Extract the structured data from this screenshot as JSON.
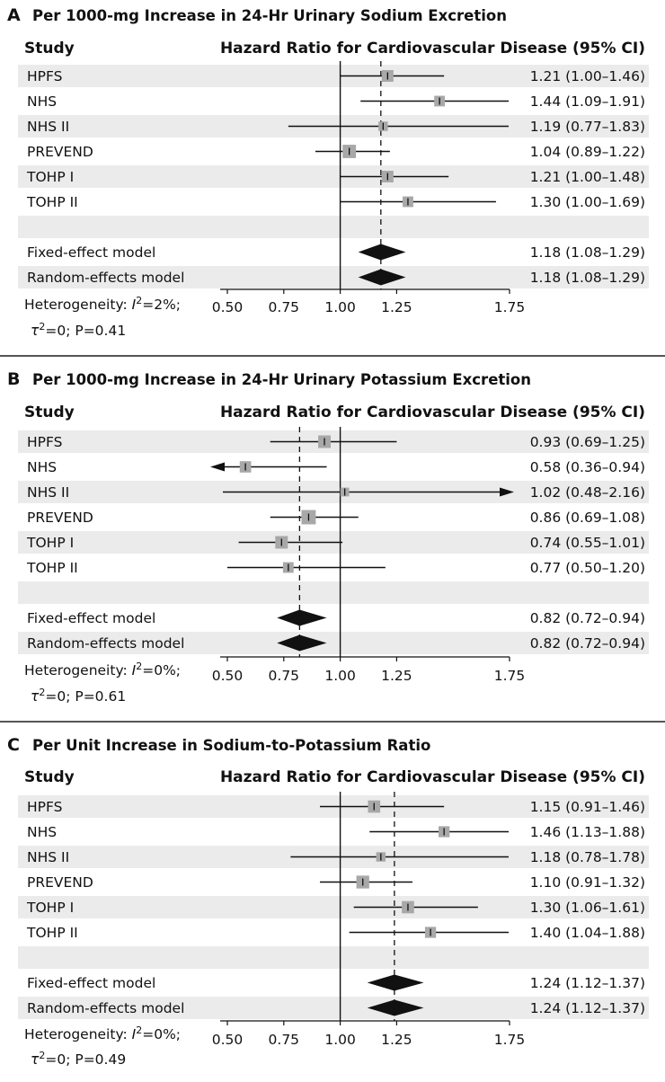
{
  "panels": [
    {
      "letter": "A",
      "title": "Per 1000-mg Increase in 24-Hr Urinary Sodium Excretion",
      "study_header": "Study",
      "hr_header": "Hazard Ratio for Cardiovascular Disease (95% CI)",
      "heterogeneity": {
        "prefix": "Heterogeneity: ",
        "i2": "I",
        "i2_val": "=2%;",
        "tau": "τ",
        "tau_val": "=0; P=0.41"
      }
    },
    {
      "letter": "B",
      "title": "Per 1000-mg Increase in 24-Hr Urinary Potassium Excretion",
      "study_header": "Study",
      "hr_header": "Hazard Ratio for Cardiovascular Disease (95% CI)",
      "heterogeneity": {
        "prefix": "Heterogeneity: ",
        "i2": "I",
        "i2_val": "=0%;",
        "tau": "τ",
        "tau_val": "=0; P=0.61"
      }
    },
    {
      "letter": "C",
      "title": "Per Unit Increase in Sodium-to-Potassium Ratio",
      "study_header": "Study",
      "hr_header": "Hazard Ratio for Cardiovascular Disease (95% CI)",
      "heterogeneity": {
        "prefix": "Heterogeneity: ",
        "i2": "I",
        "i2_val": "=0%;",
        "tau": "τ",
        "tau_val": "=0; P=0.49"
      }
    }
  ],
  "colors": {
    "row_band": "#ebebeb",
    "marker": "#a8a8a8",
    "ink": "#111111",
    "rule": "#555555"
  },
  "chart_data": [
    {
      "type": "forest",
      "x_ticks": [
        0.5,
        0.75,
        1.0,
        1.25,
        1.75
      ],
      "x_tick_labels": [
        "0.50",
        "0.75",
        "1.00",
        "1.25",
        "1.75"
      ],
      "xlim": [
        0.5,
        1.75
      ],
      "reference_line": 1.0,
      "pooled_estimate": 1.18,
      "studies": [
        {
          "name": "HPFS",
          "hr": 1.21,
          "lo": 1.0,
          "hi": 1.46,
          "label": "1.21 (1.00–1.46)",
          "weight": 1.0
        },
        {
          "name": "NHS",
          "hr": 1.44,
          "lo": 1.09,
          "hi": 1.91,
          "label": "1.44 (1.09–1.91)",
          "weight": 0.7
        },
        {
          "name": "NHS II",
          "hr": 1.19,
          "lo": 0.77,
          "hi": 1.83,
          "label": "1.19 (0.77–1.83)",
          "weight": 0.4
        },
        {
          "name": "PREVEND",
          "hr": 1.04,
          "lo": 0.89,
          "hi": 1.22,
          "label": "1.04 (0.89–1.22)",
          "weight": 1.6
        },
        {
          "name": "TOHP I",
          "hr": 1.21,
          "lo": 1.0,
          "hi": 1.48,
          "label": "1.21 (1.00–1.48)",
          "weight": 1.0
        },
        {
          "name": "TOHP II",
          "hr": 1.3,
          "lo": 1.0,
          "hi": 1.69,
          "label": "1.30 (1.00–1.69)",
          "weight": 0.7
        }
      ],
      "pooled": [
        {
          "name": "Fixed-effect model",
          "hr": 1.18,
          "lo": 1.08,
          "hi": 1.29,
          "label": "1.18 (1.08–1.29)"
        },
        {
          "name": "Random-effects model",
          "hr": 1.18,
          "lo": 1.08,
          "hi": 1.29,
          "label": "1.18 (1.08–1.29)"
        }
      ]
    },
    {
      "type": "forest",
      "x_ticks": [
        0.5,
        0.75,
        1.0,
        1.25,
        1.75
      ],
      "x_tick_labels": [
        "0.50",
        "0.75",
        "1.00",
        "1.25",
        "1.75"
      ],
      "xlim": [
        0.5,
        1.75
      ],
      "reference_line": 1.0,
      "pooled_estimate": 0.82,
      "studies": [
        {
          "name": "HPFS",
          "hr": 0.93,
          "lo": 0.69,
          "hi": 1.25,
          "label": "0.93 (0.69–1.25)",
          "weight": 1.3
        },
        {
          "name": "NHS",
          "hr": 0.58,
          "lo": 0.36,
          "hi": 0.94,
          "label": "0.58 (0.36–0.94)",
          "weight": 0.9,
          "arrow_left": true
        },
        {
          "name": "NHS II",
          "hr": 1.02,
          "lo": 0.48,
          "hi": 2.16,
          "label": "1.02 (0.48–2.16)",
          "weight": 0.3,
          "arrow_right": true
        },
        {
          "name": "PREVEND",
          "hr": 0.86,
          "lo": 0.69,
          "hi": 1.08,
          "label": "0.86 (0.69–1.08)",
          "weight": 2.0
        },
        {
          "name": "TOHP I",
          "hr": 0.74,
          "lo": 0.55,
          "hi": 1.01,
          "label": "0.74 (0.55–1.01)",
          "weight": 1.3
        },
        {
          "name": "TOHP II",
          "hr": 0.77,
          "lo": 0.5,
          "hi": 1.2,
          "label": "0.77 (0.50–1.20)",
          "weight": 0.7
        }
      ],
      "pooled": [
        {
          "name": "Fixed-effect model",
          "hr": 0.82,
          "lo": 0.72,
          "hi": 0.94,
          "label": "0.82 (0.72–0.94)"
        },
        {
          "name": "Random-effects model",
          "hr": 0.82,
          "lo": 0.72,
          "hi": 0.94,
          "label": "0.82 (0.72–0.94)"
        }
      ]
    },
    {
      "type": "forest",
      "x_ticks": [
        0.5,
        0.75,
        1.0,
        1.25,
        1.75
      ],
      "x_tick_labels": [
        "0.50",
        "0.75",
        "1.00",
        "1.25",
        "1.75"
      ],
      "xlim": [
        0.5,
        1.75
      ],
      "reference_line": 1.0,
      "pooled_estimate": 1.24,
      "studies": [
        {
          "name": "HPFS",
          "hr": 1.15,
          "lo": 0.91,
          "hi": 1.46,
          "label": "1.15 (0.91–1.46)",
          "weight": 1.2
        },
        {
          "name": "NHS",
          "hr": 1.46,
          "lo": 1.13,
          "hi": 1.88,
          "label": "1.46 (1.13–1.88)",
          "weight": 0.8
        },
        {
          "name": "NHS II",
          "hr": 1.18,
          "lo": 0.78,
          "hi": 1.78,
          "label": "1.18 (0.78–1.78)",
          "weight": 0.4
        },
        {
          "name": "PREVEND",
          "hr": 1.1,
          "lo": 0.91,
          "hi": 1.32,
          "label": "1.10 (0.91–1.32)",
          "weight": 1.4
        },
        {
          "name": "TOHP I",
          "hr": 1.3,
          "lo": 1.06,
          "hi": 1.61,
          "label": "1.30 (1.06–1.61)",
          "weight": 1.2
        },
        {
          "name": "TOHP II",
          "hr": 1.4,
          "lo": 1.04,
          "hi": 1.88,
          "label": "1.40 (1.04–1.88)",
          "weight": 0.8
        }
      ],
      "pooled": [
        {
          "name": "Fixed-effect model",
          "hr": 1.24,
          "lo": 1.12,
          "hi": 1.37,
          "label": "1.24 (1.12–1.37)"
        },
        {
          "name": "Random-effects model",
          "hr": 1.24,
          "lo": 1.12,
          "hi": 1.37,
          "label": "1.24 (1.12–1.37)"
        }
      ]
    }
  ]
}
